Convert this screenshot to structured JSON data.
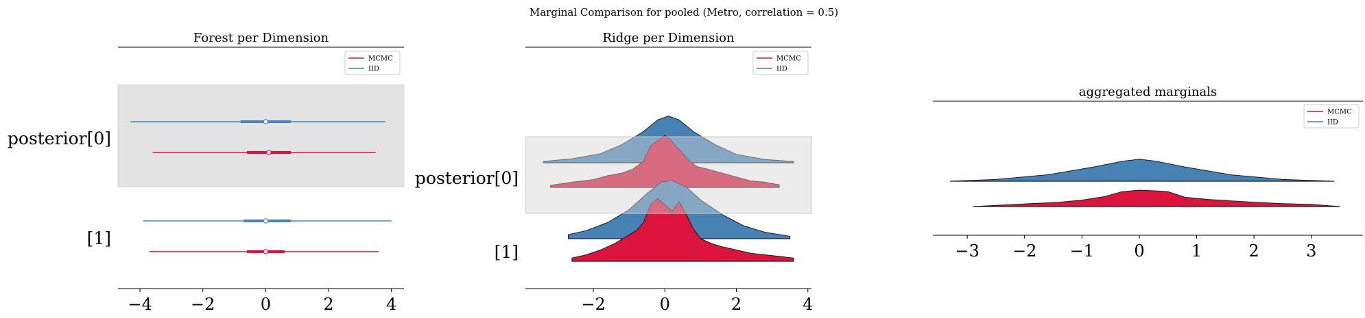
{
  "figure": {
    "suptitle": "Marginal Comparison for pooled (Metro, correlation = 0.5)"
  },
  "colors": {
    "mcmc": "#dc143c",
    "iid": "#4682b4",
    "band": "#e3e3e3",
    "axis": "#000000"
  },
  "chart_data": [
    {
      "type": "forest",
      "title": "Forest per Dimension",
      "legend": [
        "MCMC",
        "IID"
      ],
      "legend_placement": "top-right",
      "xlim": [
        -4.7,
        4.4
      ],
      "xticks": [
        -4,
        -2,
        0,
        2,
        4
      ],
      "row_labels": [
        "posterior[0]",
        "[1]"
      ],
      "rows": [
        {
          "label": "posterior[0]",
          "highlighted": true,
          "IID": {
            "hdi": [
              -4.3,
              3.8
            ],
            "iqr": [
              -0.8,
              0.8
            ],
            "median": 0.0
          },
          "MCMC": {
            "hdi": [
              -3.6,
              3.5
            ],
            "iqr": [
              -0.6,
              0.8
            ],
            "median": 0.1
          }
        },
        {
          "label": "[1]",
          "highlighted": false,
          "IID": {
            "hdi": [
              -3.9,
              4.0
            ],
            "iqr": [
              -0.7,
              0.8
            ],
            "median": 0.0
          },
          "MCMC": {
            "hdi": [
              -3.7,
              3.6
            ],
            "iqr": [
              -0.6,
              0.6
            ],
            "median": 0.0
          }
        }
      ]
    },
    {
      "type": "ridge",
      "title": "Ridge per Dimension",
      "legend": [
        "MCMC",
        "IID"
      ],
      "legend_placement": "top-right",
      "xlim": [
        -3.9,
        4.1
      ],
      "xticks": [
        -2,
        0,
        2,
        4
      ],
      "row_labels": [
        "posterior[0]",
        "[1]"
      ],
      "rows": [
        {
          "label": "posterior[0]",
          "highlighted": true,
          "IID": {
            "x": [
              -3.4,
              -2.6,
              -1.8,
              -1.2,
              -0.6,
              -0.2,
              0.1,
              0.4,
              0.8,
              1.4,
              2.0,
              2.8,
              3.6
            ],
            "density": [
              0.02,
              0.06,
              0.14,
              0.28,
              0.48,
              0.66,
              0.72,
              0.66,
              0.48,
              0.28,
              0.13,
              0.05,
              0.02
            ]
          },
          "MCMC": {
            "x": [
              -3.2,
              -2.6,
              -2.0,
              -1.6,
              -1.2,
              -0.9,
              -0.6,
              -0.4,
              -0.2,
              0.0,
              0.15,
              0.3,
              0.5,
              0.7,
              0.9,
              1.2,
              1.6,
              2.0,
              2.4,
              2.8,
              3.2
            ],
            "density": [
              0.03,
              0.08,
              0.12,
              0.18,
              0.22,
              0.28,
              0.4,
              0.64,
              0.72,
              0.8,
              0.74,
              0.64,
              0.52,
              0.4,
              0.32,
              0.28,
              0.22,
              0.16,
              0.1,
              0.08,
              0.04
            ]
          }
        },
        {
          "label": "[1]",
          "highlighted": false,
          "IID": {
            "x": [
              -2.7,
              -2.2,
              -1.6,
              -1.0,
              -0.5,
              -0.1,
              0.2,
              0.6,
              1.0,
              1.6,
              2.2,
              2.8,
              3.5
            ],
            "density": [
              0.05,
              0.1,
              0.2,
              0.36,
              0.56,
              0.7,
              0.72,
              0.64,
              0.48,
              0.3,
              0.16,
              0.08,
              0.03
            ]
          },
          "MCMC": {
            "x": [
              -2.6,
              -2.2,
              -1.8,
              -1.4,
              -1.1,
              -0.8,
              -0.6,
              -0.4,
              -0.2,
              0.0,
              0.2,
              0.4,
              0.6,
              0.8,
              1.0,
              1.3,
              1.6,
              2.0,
              2.4,
              2.8,
              3.2,
              3.6
            ],
            "density": [
              0.04,
              0.08,
              0.14,
              0.22,
              0.3,
              0.38,
              0.48,
              0.7,
              0.78,
              0.7,
              0.62,
              0.74,
              0.58,
              0.4,
              0.28,
              0.22,
              0.18,
              0.14,
              0.1,
              0.08,
              0.06,
              0.04
            ]
          }
        }
      ]
    },
    {
      "type": "ridge",
      "title": "aggregated marginals",
      "legend": [
        "MCMC",
        "IID"
      ],
      "legend_placement": "top-right",
      "xlim": [
        -3.6,
        3.9
      ],
      "xticks": [
        -3,
        -2,
        -1,
        0,
        1,
        2,
        3
      ],
      "rows": [
        {
          "IID": {
            "x": [
              -3.3,
              -2.5,
              -1.6,
              -0.8,
              -0.3,
              0.0,
              0.3,
              0.8,
              1.6,
              2.5,
              3.4
            ],
            "density": [
              0.0,
              0.05,
              0.18,
              0.4,
              0.56,
              0.62,
              0.56,
              0.4,
              0.18,
              0.05,
              0.0
            ]
          },
          "MCMC": {
            "x": [
              -2.9,
              -2.4,
              -1.9,
              -1.4,
              -1.0,
              -0.6,
              -0.3,
              0.0,
              0.3,
              0.5,
              0.8,
              1.2,
              1.6,
              2.0,
              2.5,
              3.0,
              3.5
            ],
            "density": [
              0.0,
              0.04,
              0.08,
              0.12,
              0.18,
              0.28,
              0.42,
              0.46,
              0.44,
              0.42,
              0.26,
              0.2,
              0.16,
              0.12,
              0.08,
              0.06,
              0.0
            ]
          }
        }
      ]
    }
  ]
}
